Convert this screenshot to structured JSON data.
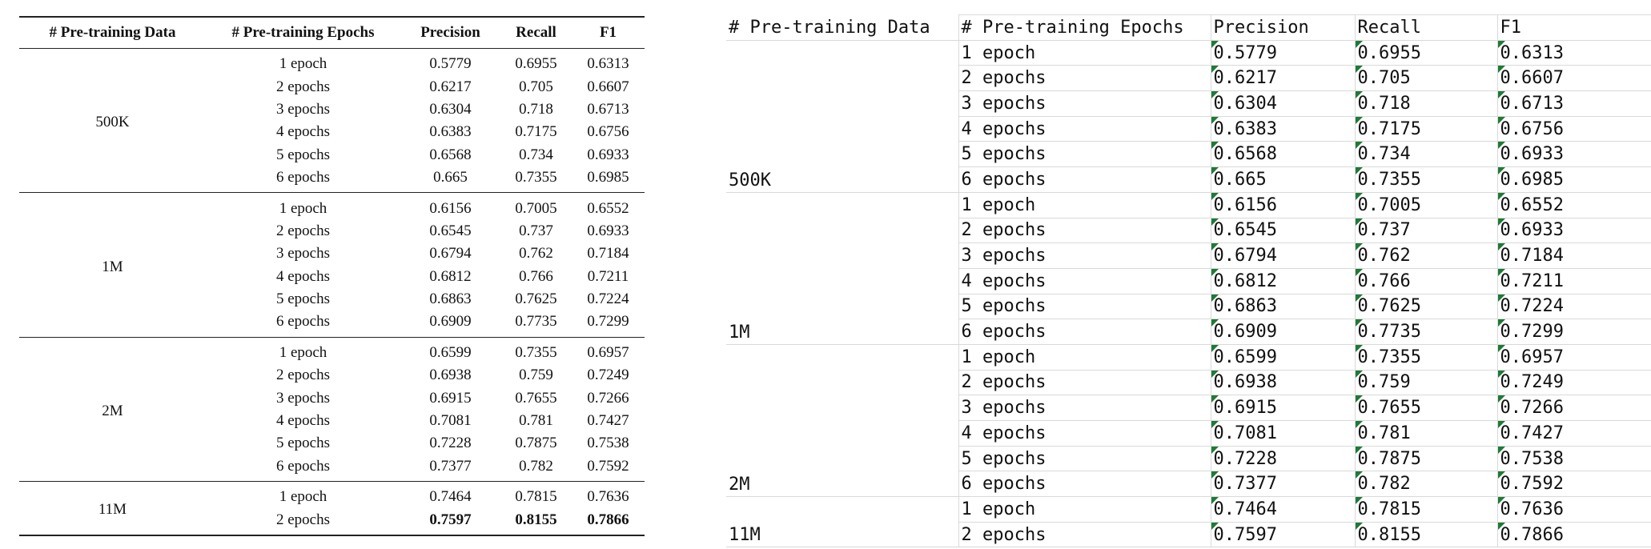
{
  "table": {
    "header": [
      "# Pre-training Data",
      "# Pre-training Epochs",
      "Precision",
      "Recall",
      "F1"
    ],
    "groups": [
      {
        "label": "500K",
        "rows": [
          [
            "1 epoch",
            "0.5779",
            "0.6955",
            "0.6313"
          ],
          [
            "2 epochs",
            "0.6217",
            "0.705",
            "0.6607"
          ],
          [
            "3 epochs",
            "0.6304",
            "0.718",
            "0.6713"
          ],
          [
            "4 epochs",
            "0.6383",
            "0.7175",
            "0.6756"
          ],
          [
            "5 epochs",
            "0.6568",
            "0.734",
            "0.6933"
          ],
          [
            "6 epochs",
            "0.665",
            "0.7355",
            "0.6985"
          ]
        ]
      },
      {
        "label": "1M",
        "rows": [
          [
            "1 epoch",
            "0.6156",
            "0.7005",
            "0.6552"
          ],
          [
            "2 epochs",
            "0.6545",
            "0.737",
            "0.6933"
          ],
          [
            "3 epochs",
            "0.6794",
            "0.762",
            "0.7184"
          ],
          [
            "4 epochs",
            "0.6812",
            "0.766",
            "0.7211"
          ],
          [
            "5 epochs",
            "0.6863",
            "0.7625",
            "0.7224"
          ],
          [
            "6 epochs",
            "0.6909",
            "0.7735",
            "0.7299"
          ]
        ]
      },
      {
        "label": "2M",
        "rows": [
          [
            "1 epoch",
            "0.6599",
            "0.7355",
            "0.6957"
          ],
          [
            "2 epochs",
            "0.6938",
            "0.759",
            "0.7249"
          ],
          [
            "3 epochs",
            "0.6915",
            "0.7655",
            "0.7266"
          ],
          [
            "4 epochs",
            "0.7081",
            "0.781",
            "0.7427"
          ],
          [
            "5 epochs",
            "0.7228",
            "0.7875",
            "0.7538"
          ],
          [
            "6 epochs",
            "0.7377",
            "0.782",
            "0.7592"
          ]
        ]
      },
      {
        "label": "11M",
        "rows": [
          [
            "1 epoch",
            "0.7464",
            "0.7815",
            "0.7636"
          ],
          [
            "2 epochs",
            "0.7597",
            "0.8155",
            "0.7866"
          ]
        ]
      }
    ],
    "bold_row": [
      3,
      1
    ]
  }
}
